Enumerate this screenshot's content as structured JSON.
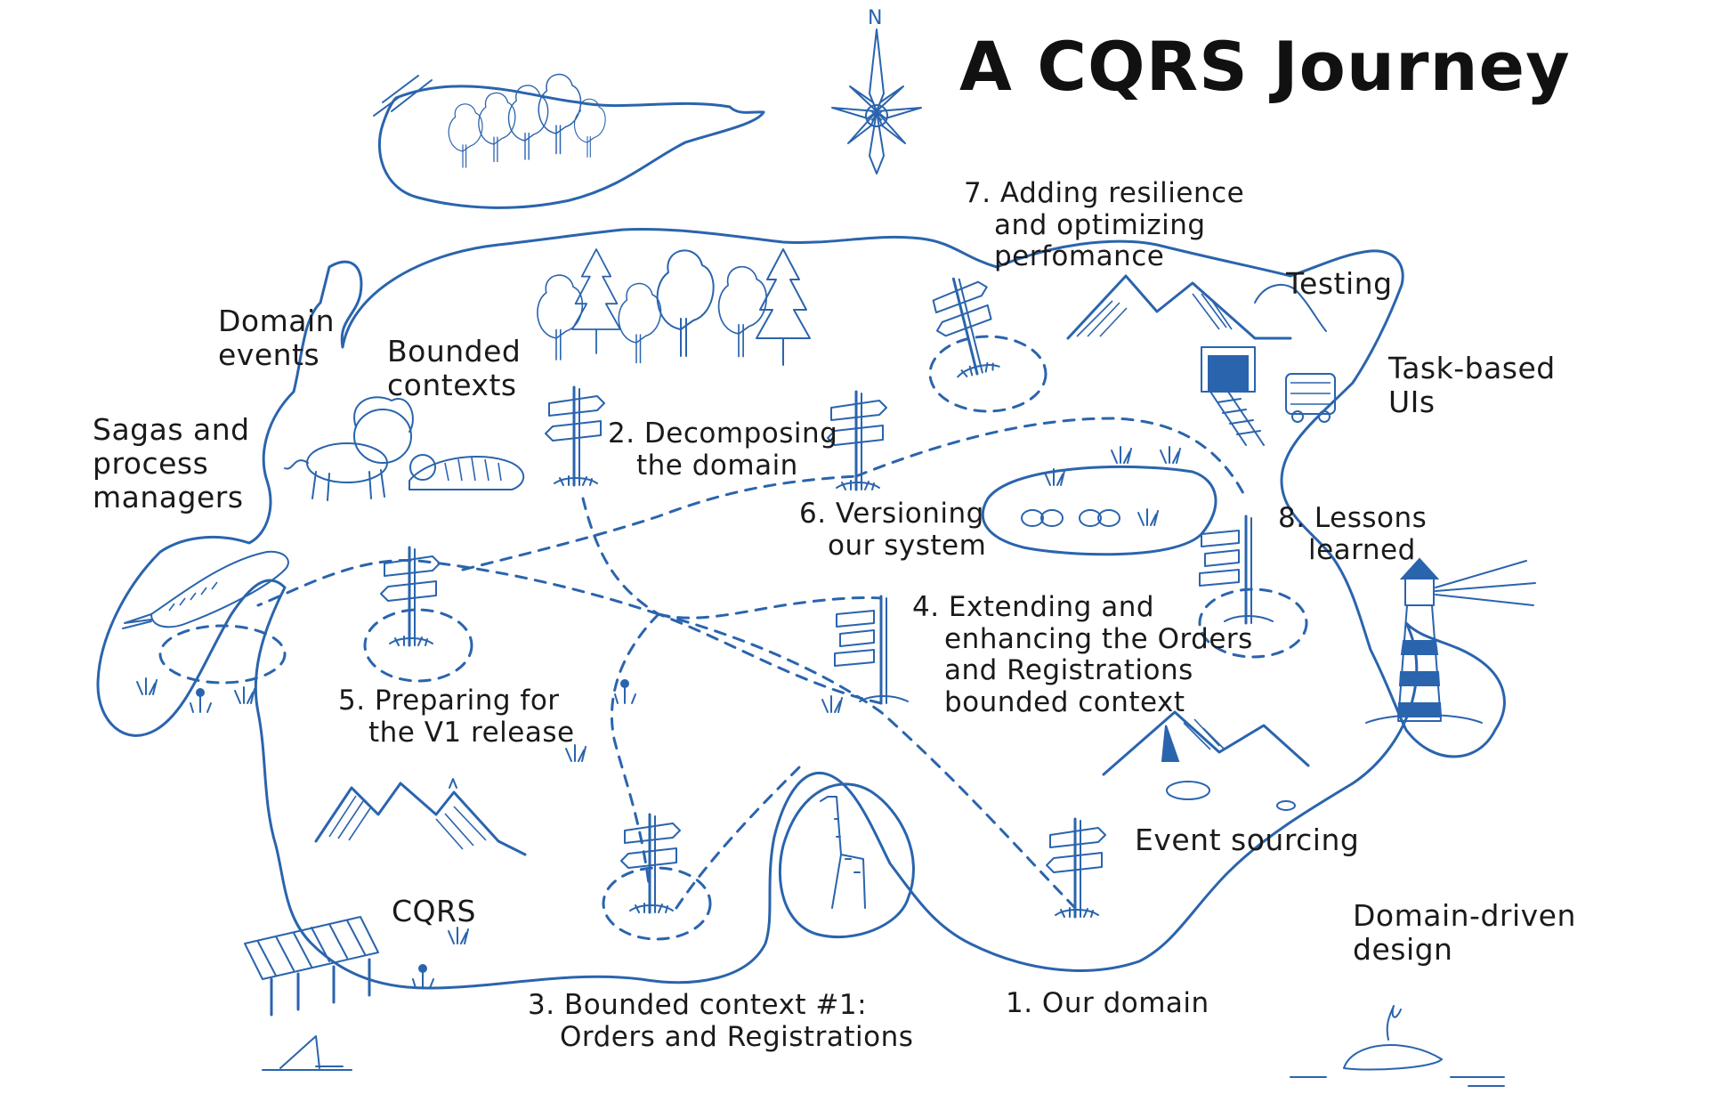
{
  "title": "A CQRS Journey",
  "compass": {
    "north_label": "N"
  },
  "ink_color": "#2a64ad",
  "regions": {
    "domain_events": [
      "Domain",
      "events"
    ],
    "bounded_contexts": [
      "Bounded",
      "contexts"
    ],
    "sagas": [
      "Sagas and",
      "process",
      "managers"
    ],
    "testing": [
      "Testing"
    ],
    "task_based_uis": [
      "Task-based",
      "UIs"
    ],
    "cqrs": [
      "CQRS"
    ],
    "event_sourcing": [
      "Event sourcing"
    ],
    "domain_driven_design": [
      "Domain-driven",
      "design"
    ]
  },
  "stops": {
    "s1": [
      "1. Our domain"
    ],
    "s2": [
      "2. Decomposing",
      "the domain"
    ],
    "s3": [
      "3. Bounded context #1:",
      "Orders and Registrations"
    ],
    "s4": [
      "4. Extending and",
      "enhancing the Orders",
      "and Registrations",
      "bounded context"
    ],
    "s5": [
      "5. Preparing for",
      "the V1 release"
    ],
    "s6": [
      "6. Versioning",
      "our system"
    ],
    "s7": [
      "7. Adding resilience",
      "and optimizing",
      "perfomance"
    ],
    "s8": [
      "8. Lessons",
      "learned"
    ]
  },
  "icons": [
    "compass-rose-icon",
    "signpost-icon",
    "forest-icon",
    "lion-icon",
    "tiger-icon",
    "crocodile-icon",
    "giraffe-icon",
    "mountain-icon",
    "lighthouse-icon",
    "whale-icon",
    "shark-fin-icon",
    "mine-cart-icon",
    "bridge-icon",
    "bicycle-icon"
  ]
}
